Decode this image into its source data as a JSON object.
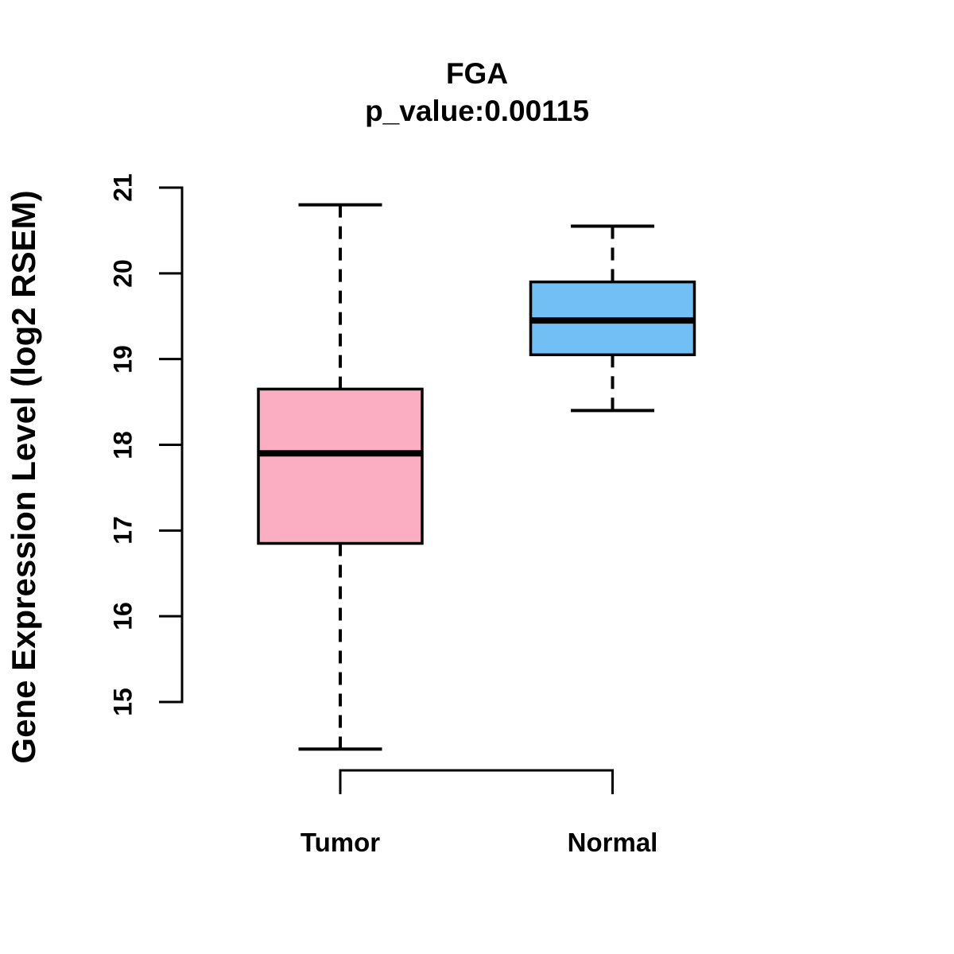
{
  "page": {
    "background_color": "#FFFFFF",
    "text_color": "#000000"
  },
  "chart_data": {
    "type": "boxplot",
    "title": "FGA",
    "subtitle": "p_value:0.00115",
    "ylabel": "Gene Expression Level (log2 RSEM)",
    "xlabel": "",
    "ylim": [
      15,
      21
    ],
    "yticks": [
      15,
      16,
      17,
      18,
      19,
      20,
      21
    ],
    "grid": "off",
    "line_color": "#000000",
    "categories": [
      "Tumor",
      "Normal"
    ],
    "groups": [
      {
        "label": "Tumor",
        "color": "#FBAEC1",
        "whisker_low": 14.45,
        "q1": 16.85,
        "median": 17.9,
        "q3": 18.65,
        "whisker_high": 20.8
      },
      {
        "label": "Normal",
        "color": "#71BFF4",
        "whisker_low": 18.4,
        "q1": 19.05,
        "median": 19.45,
        "q3": 19.9,
        "whisker_high": 20.55
      }
    ]
  }
}
